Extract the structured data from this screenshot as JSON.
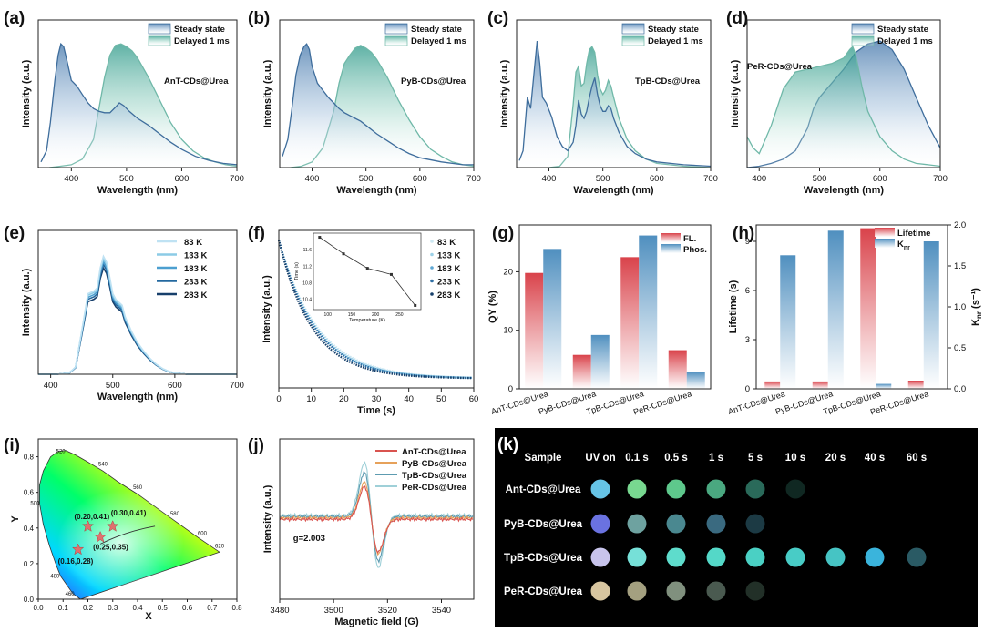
{
  "chart_data": [
    {
      "id": "a",
      "type": "line",
      "panel_label": "(a)",
      "sample": "AnT-CDs@Urea",
      "xlabel": "Wavelength (nm)",
      "ylabel": "Intensity (a.u.)",
      "xlim": [
        340,
        700
      ],
      "ylim": [
        0,
        1.05
      ],
      "xticks": [
        400,
        500,
        600,
        700
      ],
      "legend": [
        "Steady state",
        "Delayed 1 ms"
      ],
      "series": [
        {
          "name": "Steady state",
          "x": [
            345,
            355,
            362,
            370,
            376,
            381,
            386,
            392,
            400,
            410,
            420,
            430,
            440,
            450,
            460,
            470,
            480,
            487,
            495,
            505,
            520,
            540,
            560,
            580,
            600,
            625,
            650,
            675,
            700
          ],
          "y": [
            0.04,
            0.12,
            0.32,
            0.62,
            0.8,
            0.88,
            0.86,
            0.76,
            0.62,
            0.58,
            0.52,
            0.46,
            0.42,
            0.4,
            0.39,
            0.39,
            0.43,
            0.46,
            0.44,
            0.4,
            0.35,
            0.3,
            0.24,
            0.18,
            0.13,
            0.08,
            0.05,
            0.03,
            0.02
          ]
        },
        {
          "name": "Delayed 1 ms",
          "x": [
            360,
            380,
            400,
            420,
            440,
            450,
            460,
            470,
            480,
            490,
            500,
            510,
            520,
            540,
            560,
            580,
            600,
            620,
            640,
            660,
            680,
            700
          ],
          "y": [
            0.0,
            0.01,
            0.02,
            0.06,
            0.2,
            0.42,
            0.64,
            0.8,
            0.87,
            0.88,
            0.86,
            0.83,
            0.78,
            0.64,
            0.48,
            0.32,
            0.2,
            0.12,
            0.07,
            0.04,
            0.02,
            0.01
          ]
        }
      ]
    },
    {
      "id": "b",
      "type": "line",
      "panel_label": "(b)",
      "sample": "PyB-CDs@Urea",
      "xlabel": "Wavelength (nm)",
      "ylabel": "Intensity (a.u.)",
      "xlim": [
        340,
        700
      ],
      "ylim": [
        0,
        1.05
      ],
      "xticks": [
        400,
        500,
        600,
        700
      ],
      "legend": [
        "Steady state",
        "Delayed 1 ms"
      ],
      "series": [
        {
          "name": "Steady state",
          "x": [
            345,
            355,
            362,
            370,
            378,
            385,
            390,
            395,
            400,
            410,
            420,
            430,
            440,
            450,
            460,
            470,
            480,
            490,
            500,
            520,
            540,
            560,
            580,
            600,
            640,
            680,
            700
          ],
          "y": [
            0.08,
            0.2,
            0.4,
            0.66,
            0.8,
            0.86,
            0.88,
            0.84,
            0.72,
            0.6,
            0.55,
            0.5,
            0.46,
            0.42,
            0.39,
            0.37,
            0.35,
            0.33,
            0.3,
            0.24,
            0.19,
            0.14,
            0.1,
            0.07,
            0.04,
            0.02,
            0.02
          ]
        },
        {
          "name": "Delayed 1 ms",
          "x": [
            360,
            380,
            400,
            420,
            440,
            450,
            460,
            470,
            480,
            490,
            500,
            510,
            520,
            540,
            560,
            580,
            600,
            620,
            640,
            660,
            680,
            700
          ],
          "y": [
            0.0,
            0.01,
            0.04,
            0.14,
            0.4,
            0.6,
            0.74,
            0.8,
            0.85,
            0.87,
            0.85,
            0.82,
            0.77,
            0.64,
            0.48,
            0.34,
            0.22,
            0.13,
            0.08,
            0.04,
            0.02,
            0.01
          ]
        }
      ]
    },
    {
      "id": "c",
      "type": "line",
      "panel_label": "(c)",
      "sample": "TpB-CDs@Urea",
      "xlabel": "Wavelength (nm)",
      "ylabel": "Intensity (a.u.)",
      "xlim": [
        340,
        700
      ],
      "ylim": [
        0,
        1.05
      ],
      "xticks": [
        400,
        500,
        600,
        700
      ],
      "legend": [
        "Steady state",
        "Delayed 1 ms"
      ],
      "series": [
        {
          "name": "Steady state",
          "x": [
            345,
            352,
            360,
            366,
            372,
            378,
            383,
            388,
            395,
            405,
            415,
            425,
            435,
            445,
            450,
            455,
            460,
            465,
            470,
            475,
            480,
            485,
            490,
            495,
            500,
            505,
            510,
            515,
            520,
            530,
            545,
            560,
            580,
            600,
            650,
            700
          ],
          "y": [
            0.05,
            0.12,
            0.5,
            0.42,
            0.66,
            0.9,
            0.74,
            0.5,
            0.46,
            0.36,
            0.22,
            0.15,
            0.12,
            0.18,
            0.3,
            0.48,
            0.38,
            0.35,
            0.4,
            0.5,
            0.58,
            0.64,
            0.52,
            0.44,
            0.4,
            0.4,
            0.44,
            0.42,
            0.35,
            0.25,
            0.15,
            0.1,
            0.06,
            0.04,
            0.02,
            0.01
          ]
        },
        {
          "name": "Delayed 1 ms",
          "x": [
            400,
            420,
            435,
            445,
            450,
            455,
            460,
            465,
            470,
            475,
            480,
            485,
            490,
            495,
            500,
            505,
            510,
            515,
            520,
            530,
            545,
            560,
            580,
            600,
            650,
            700
          ],
          "y": [
            0.0,
            0.01,
            0.08,
            0.45,
            0.68,
            0.72,
            0.58,
            0.6,
            0.74,
            0.84,
            0.86,
            0.82,
            0.66,
            0.56,
            0.52,
            0.55,
            0.62,
            0.58,
            0.5,
            0.35,
            0.2,
            0.12,
            0.06,
            0.03,
            0.01,
            0.0
          ]
        }
      ]
    },
    {
      "id": "d",
      "type": "line",
      "panel_label": "(d)",
      "sample": "PeR-CDs@Urea",
      "xlabel": "Wavelength (nm)",
      "ylabel": "Intensity (a.u.)",
      "xlim": [
        380,
        700
      ],
      "ylim": [
        0,
        1.05
      ],
      "xticks": [
        400,
        500,
        600,
        700
      ],
      "legend": [
        "Steady state",
        "Delayed 1 ms"
      ],
      "series": [
        {
          "name": "Steady state",
          "x": [
            380,
            400,
            420,
            440,
            460,
            480,
            490,
            500,
            520,
            540,
            560,
            580,
            600,
            620,
            640,
            660,
            680,
            700
          ],
          "y": [
            0.0,
            0.01,
            0.03,
            0.06,
            0.12,
            0.28,
            0.42,
            0.5,
            0.6,
            0.7,
            0.82,
            0.88,
            0.9,
            0.84,
            0.7,
            0.5,
            0.3,
            0.14
          ]
        },
        {
          "name": "Delayed 1 ms",
          "x": [
            380,
            390,
            400,
            420,
            440,
            460,
            480,
            500,
            520,
            540,
            550,
            555,
            560,
            570,
            580,
            600,
            620,
            640,
            660,
            680,
            700
          ],
          "y": [
            0.22,
            0.14,
            0.1,
            0.3,
            0.56,
            0.68,
            0.7,
            0.72,
            0.74,
            0.78,
            0.84,
            0.86,
            0.8,
            0.58,
            0.4,
            0.22,
            0.12,
            0.06,
            0.03,
            0.02,
            0.01
          ]
        }
      ]
    },
    {
      "id": "e",
      "type": "line",
      "panel_label": "(e)",
      "xlabel": "Wavelength (nm)",
      "ylabel": "Intensity (a.u.)",
      "xlim": [
        380,
        700
      ],
      "ylim": [
        0,
        1.0
      ],
      "xticks": [
        400,
        500,
        600,
        700
      ],
      "x": [
        380,
        410,
        430,
        440,
        450,
        460,
        470,
        475,
        480,
        485,
        490,
        495,
        500,
        505,
        510,
        515,
        520,
        530,
        540,
        550,
        560,
        570,
        580,
        590,
        600,
        620,
        650,
        700
      ],
      "base": [
        0.0,
        0.0,
        0.01,
        0.05,
        0.3,
        0.56,
        0.58,
        0.6,
        0.74,
        0.82,
        0.78,
        0.68,
        0.56,
        0.52,
        0.5,
        0.48,
        0.4,
        0.3,
        0.22,
        0.16,
        0.11,
        0.07,
        0.04,
        0.02,
        0.01,
        0.0,
        0.0,
        0.0
      ],
      "series": [
        {
          "name": "83 K",
          "scale": 1.0,
          "color": "#bfe2f3"
        },
        {
          "name": "133 K",
          "scale": 0.98,
          "color": "#8ccbe6"
        },
        {
          "name": "183 K",
          "scale": 0.955,
          "color": "#4c9fd0"
        },
        {
          "name": "233 K",
          "scale": 0.93,
          "color": "#23689f"
        },
        {
          "name": "283 K",
          "scale": 0.9,
          "color": "#173f6b"
        }
      ]
    },
    {
      "id": "f",
      "type": "scatter",
      "panel_label": "(f)",
      "xlabel": "Time (s)",
      "ylabel": "Intensity (a.u.)",
      "xlim": [
        0,
        60
      ],
      "ylim": [
        0,
        1.0
      ],
      "xticks": [
        0,
        10,
        20,
        30,
        40,
        50,
        60
      ],
      "series": [
        {
          "name": "83 K",
          "tau": 11.9
        },
        {
          "name": "133 K",
          "tau": 11.5
        },
        {
          "name": "183 K",
          "tau": 11.15
        },
        {
          "name": "233 K",
          "tau": 11.0
        },
        {
          "name": "283 K",
          "tau": 10.25
        }
      ],
      "inset": {
        "xlabel": "Temperature (K)",
        "ylabel": "Time (s)",
        "x": [
          83,
          133,
          183,
          233,
          283
        ],
        "y": [
          11.9,
          11.5,
          11.15,
          11.0,
          10.25
        ],
        "xticks": [
          100,
          150,
          200,
          250
        ],
        "yticks": [
          10.4,
          10.8,
          11.2,
          11.6
        ],
        "xlim": [
          70,
          295
        ],
        "ylim": [
          10.15,
          12.0
        ]
      }
    },
    {
      "id": "g",
      "type": "bar",
      "panel_label": "(g)",
      "ylabel": "QY (%)",
      "ylim": [
        0,
        28
      ],
      "yticks": [
        0,
        10,
        20
      ],
      "categories": [
        "AnT-CDs@Urea",
        "PyB-CDs@Urea",
        "TpB-CDs@Urea",
        "PeR-CDs@Urea"
      ],
      "series": [
        {
          "name": "FL.",
          "values": [
            19.8,
            5.8,
            22.5,
            6.6
          ]
        },
        {
          "name": "Phos.",
          "values": [
            23.9,
            9.2,
            26.2,
            2.9
          ]
        }
      ]
    },
    {
      "id": "h",
      "type": "bar",
      "panel_label": "(h)",
      "ylabel": "Lifetime (s)",
      "y2label": "K",
      "y2label_sub": "nr",
      "y2label_unit": " (s⁻¹)",
      "ylim": [
        0,
        10
      ],
      "yticks": [
        0,
        3,
        6,
        9
      ],
      "y2lim": [
        0,
        2.0
      ],
      "y2ticks": [
        "0.0",
        "0.5",
        "1.0",
        "1.5",
        "2.0"
      ],
      "categories": [
        "AnT-CDs@Urea",
        "PyB-CDs@Urea",
        "TpB-CDs@Urea",
        "PeR-CDs@Urea"
      ],
      "legend": [
        "Lifetime",
        "K"
      ],
      "series": [
        {
          "name": "Lifetime",
          "axis": "left",
          "values": [
            0.45,
            0.45,
            9.8,
            0.5
          ]
        },
        {
          "name": "Knr",
          "axis": "right",
          "values": [
            1.63,
            1.93,
            0.06,
            1.8
          ]
        }
      ]
    },
    {
      "id": "i",
      "type": "scatter",
      "panel_label": "(i)",
      "xlabel": "X",
      "ylabel": "Y",
      "xlim": [
        0,
        0.8
      ],
      "ylim": [
        0,
        0.9
      ],
      "xticks": [
        "0.0",
        "0.1",
        "0.2",
        "0.3",
        "0.4",
        "0.5",
        "0.6",
        "0.7",
        "0.8"
      ],
      "yticks": [
        "0.0",
        "0.2",
        "0.4",
        "0.6",
        "0.8"
      ],
      "wavelength_labels": [
        "460",
        "480",
        "500",
        "520",
        "540",
        "560",
        "580",
        "600",
        "620"
      ],
      "points": [
        {
          "label": "(0.20,0.41)",
          "x": 0.2,
          "y": 0.41
        },
        {
          "label": "(0.30,0.41)",
          "x": 0.3,
          "y": 0.41
        },
        {
          "label": "(0.25,0.35)",
          "x": 0.25,
          "y": 0.35
        },
        {
          "label": "(0.16,0.28)",
          "x": 0.16,
          "y": 0.28
        }
      ]
    },
    {
      "id": "j",
      "type": "line",
      "panel_label": "(j)",
      "xlabel": "Magnetic field (G)",
      "ylabel": "Intensity (a.u.)",
      "xlim": [
        3480,
        3552
      ],
      "xticks": [
        3480,
        3500,
        3520,
        3540
      ],
      "annotation": "g=2.003",
      "series": [
        {
          "name": "AnT-CDs@Urea",
          "amp": 0.62,
          "color": "#d9534f"
        },
        {
          "name": "PyB-CDs@Urea",
          "amp": 0.68,
          "color": "#e6a15a"
        },
        {
          "name": "TpB-CDs@Urea",
          "amp": 0.84,
          "color": "#5d9bb0"
        },
        {
          "name": "PeR-CDs@Urea",
          "amp": 1.0,
          "color": "#9fd0d8"
        }
      ]
    },
    {
      "id": "k",
      "type": "table",
      "panel_label": "(k)",
      "header": [
        "Sample",
        "UV on",
        "0.1 s",
        "0.5 s",
        "1 s",
        "5 s",
        "10 s",
        "20 s",
        "40 s",
        "60 s"
      ],
      "rows": [
        {
          "name": "Ant-CDs@Urea",
          "colors": [
            "#66c4e6",
            "#78d890",
            "#5ec88c",
            "#4aa880",
            "#2a6a5a",
            "#102822",
            null,
            null,
            null
          ]
        },
        {
          "name": "PyB-CDs@Urea",
          "colors": [
            "#6a72e0",
            "#6ea2a0",
            "#4a8890",
            "#3a6a80",
            "#1c3a44",
            null,
            null,
            null,
            null
          ]
        },
        {
          "name": "TpB-CDs@Urea",
          "colors": [
            "#c8c4ec",
            "#76e0d8",
            "#5edccc",
            "#54d8c8",
            "#4ad0c4",
            "#48ccc6",
            "#46c4c4",
            "#3ab4dc",
            "#2a5a64"
          ]
        },
        {
          "name": "PeR-CDs@Urea",
          "colors": [
            "#d8c6a0",
            "#a4a080",
            "#80907e",
            "#4a5a50",
            "#223028",
            null,
            null,
            null,
            null
          ]
        }
      ]
    }
  ]
}
